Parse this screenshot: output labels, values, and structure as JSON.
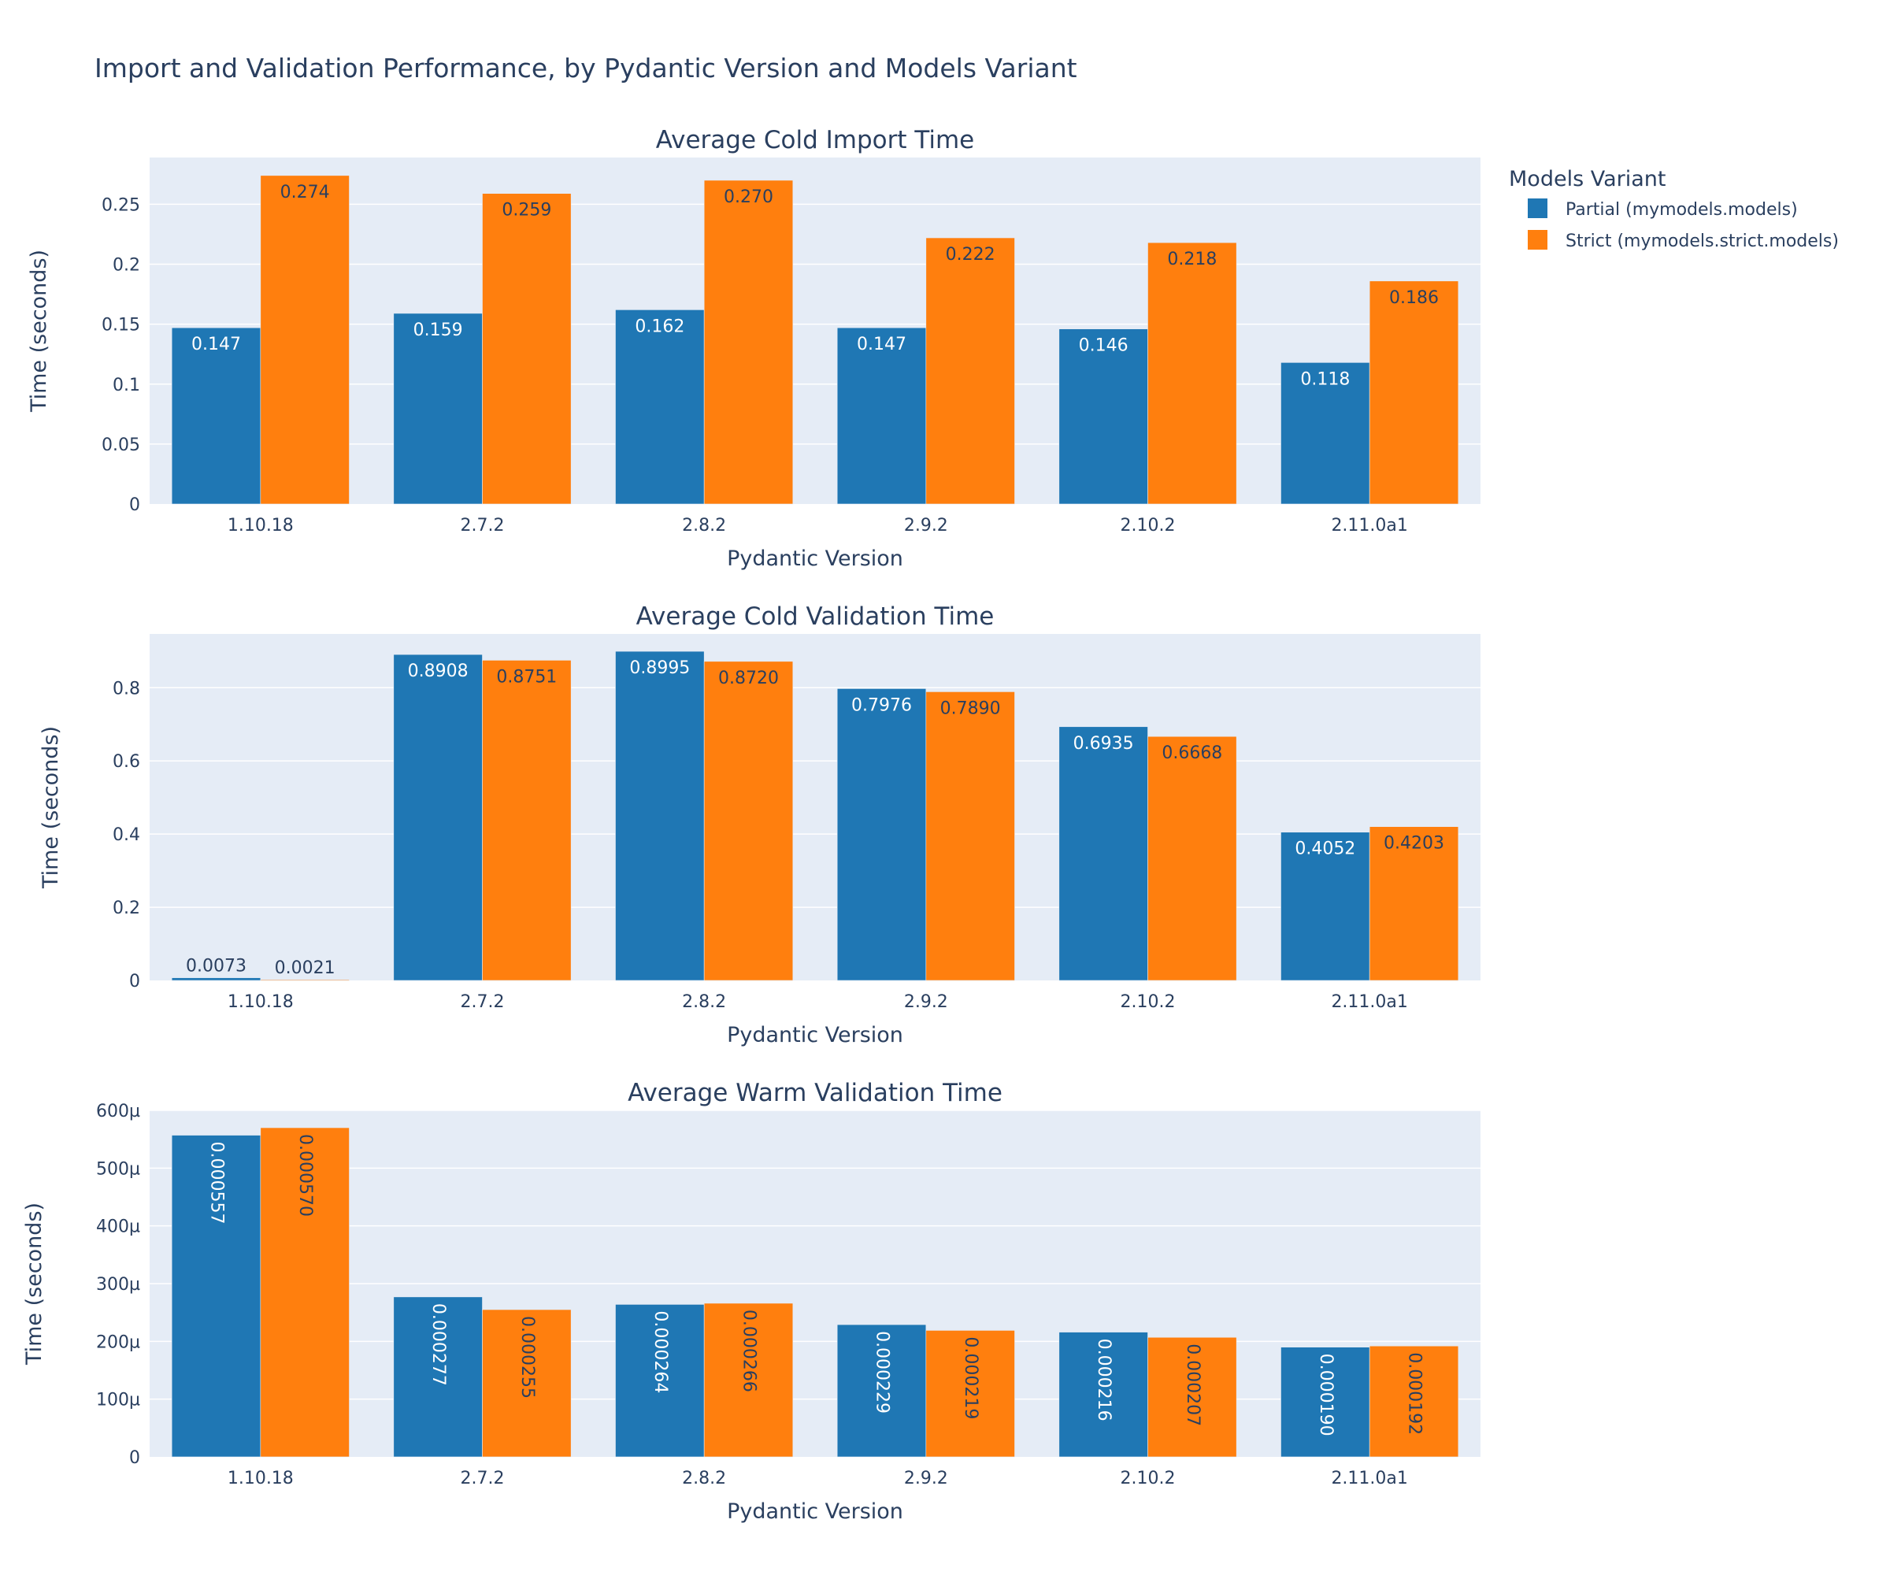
{
  "title": "Import and Validation Performance, by Pydantic Version and Models Variant",
  "legend": {
    "title": "Models Variant",
    "placement": "right",
    "items": [
      "Partial (mymodels.models)",
      "Strict (mymodels.strict.models)"
    ]
  },
  "colors": {
    "partial": "#1f77b4",
    "strict": "#ff7f0e",
    "plot_bg": "#e5ecf6",
    "grid": "#ffffff",
    "text": "#2a3f5f"
  },
  "chart_data": [
    {
      "type": "bar",
      "title": "Average Cold Import Time",
      "xlabel": "Pydantic Version",
      "ylabel": "Time (seconds)",
      "categories": [
        "1.10.18",
        "2.7.2",
        "2.8.2",
        "2.9.2",
        "2.10.2",
        "2.11.0a1"
      ],
      "ylim": [
        0,
        0.289
      ],
      "yticks": [
        0,
        0.05,
        0.1,
        0.15,
        0.2,
        0.25
      ],
      "ytick_labels": [
        "0",
        "0.05",
        "0.1",
        "0.15",
        "0.2",
        "0.25"
      ],
      "label_orientation": "horizontal",
      "grid": true,
      "series": [
        {
          "name": "Partial (mymodels.models)",
          "values": [
            0.147,
            0.159,
            0.162,
            0.147,
            0.146,
            0.118
          ],
          "labels": [
            "0.147",
            "0.159",
            "0.162",
            "0.147",
            "0.146",
            "0.118"
          ]
        },
        {
          "name": "Strict (mymodels.strict.models)",
          "values": [
            0.274,
            0.259,
            0.27,
            0.222,
            0.218,
            0.186
          ],
          "labels": [
            "0.274",
            "0.259",
            "0.270",
            "0.222",
            "0.218",
            "0.186"
          ]
        }
      ]
    },
    {
      "type": "bar",
      "title": "Average Cold Validation Time",
      "xlabel": "Pydantic Version",
      "ylabel": "Time (seconds)",
      "categories": [
        "1.10.18",
        "2.7.2",
        "2.8.2",
        "2.9.2",
        "2.10.2",
        "2.11.0a1"
      ],
      "ylim": [
        0,
        0.947
      ],
      "yticks": [
        0,
        0.2,
        0.4,
        0.6,
        0.8
      ],
      "ytick_labels": [
        "0",
        "0.2",
        "0.4",
        "0.6",
        "0.8"
      ],
      "label_orientation": "horizontal",
      "grid": true,
      "series": [
        {
          "name": "Partial (mymodels.models)",
          "values": [
            0.0073,
            0.8908,
            0.8995,
            0.7976,
            0.6935,
            0.4052
          ],
          "labels": [
            "0.0073",
            "0.8908",
            "0.8995",
            "0.7976",
            "0.6935",
            "0.4052"
          ]
        },
        {
          "name": "Strict (mymodels.strict.models)",
          "values": [
            0.0021,
            0.8751,
            0.872,
            0.789,
            0.6668,
            0.4203
          ],
          "labels": [
            "0.0021",
            "0.8751",
            "0.8720",
            "0.7890",
            "0.6668",
            "0.4203"
          ]
        }
      ]
    },
    {
      "type": "bar",
      "title": "Average Warm Validation Time",
      "xlabel": "Pydantic Version",
      "ylabel": "Time (seconds)",
      "categories": [
        "1.10.18",
        "2.7.2",
        "2.8.2",
        "2.9.2",
        "2.10.2",
        "2.11.0a1"
      ],
      "ylim": [
        0,
        0.0006
      ],
      "yticks": [
        0,
        0.0001,
        0.0002,
        0.0003,
        0.0004,
        0.0005,
        0.0006
      ],
      "ytick_labels": [
        "0",
        "100µ",
        "200µ",
        "300µ",
        "400µ",
        "500µ",
        "600µ"
      ],
      "label_orientation": "vertical",
      "grid": true,
      "series": [
        {
          "name": "Partial (mymodels.models)",
          "values": [
            0.000557,
            0.000277,
            0.000264,
            0.000229,
            0.000216,
            0.00019
          ],
          "labels": [
            "0.000557",
            "0.000277",
            "0.000264",
            "0.000229",
            "0.000216",
            "0.000190"
          ]
        },
        {
          "name": "Strict (mymodels.strict.models)",
          "values": [
            0.00057,
            0.000255,
            0.000266,
            0.000219,
            0.000207,
            0.000192
          ],
          "labels": [
            "0.000570",
            "0.000255",
            "0.000266",
            "0.000219",
            "0.000207",
            "0.000192"
          ]
        }
      ]
    }
  ]
}
